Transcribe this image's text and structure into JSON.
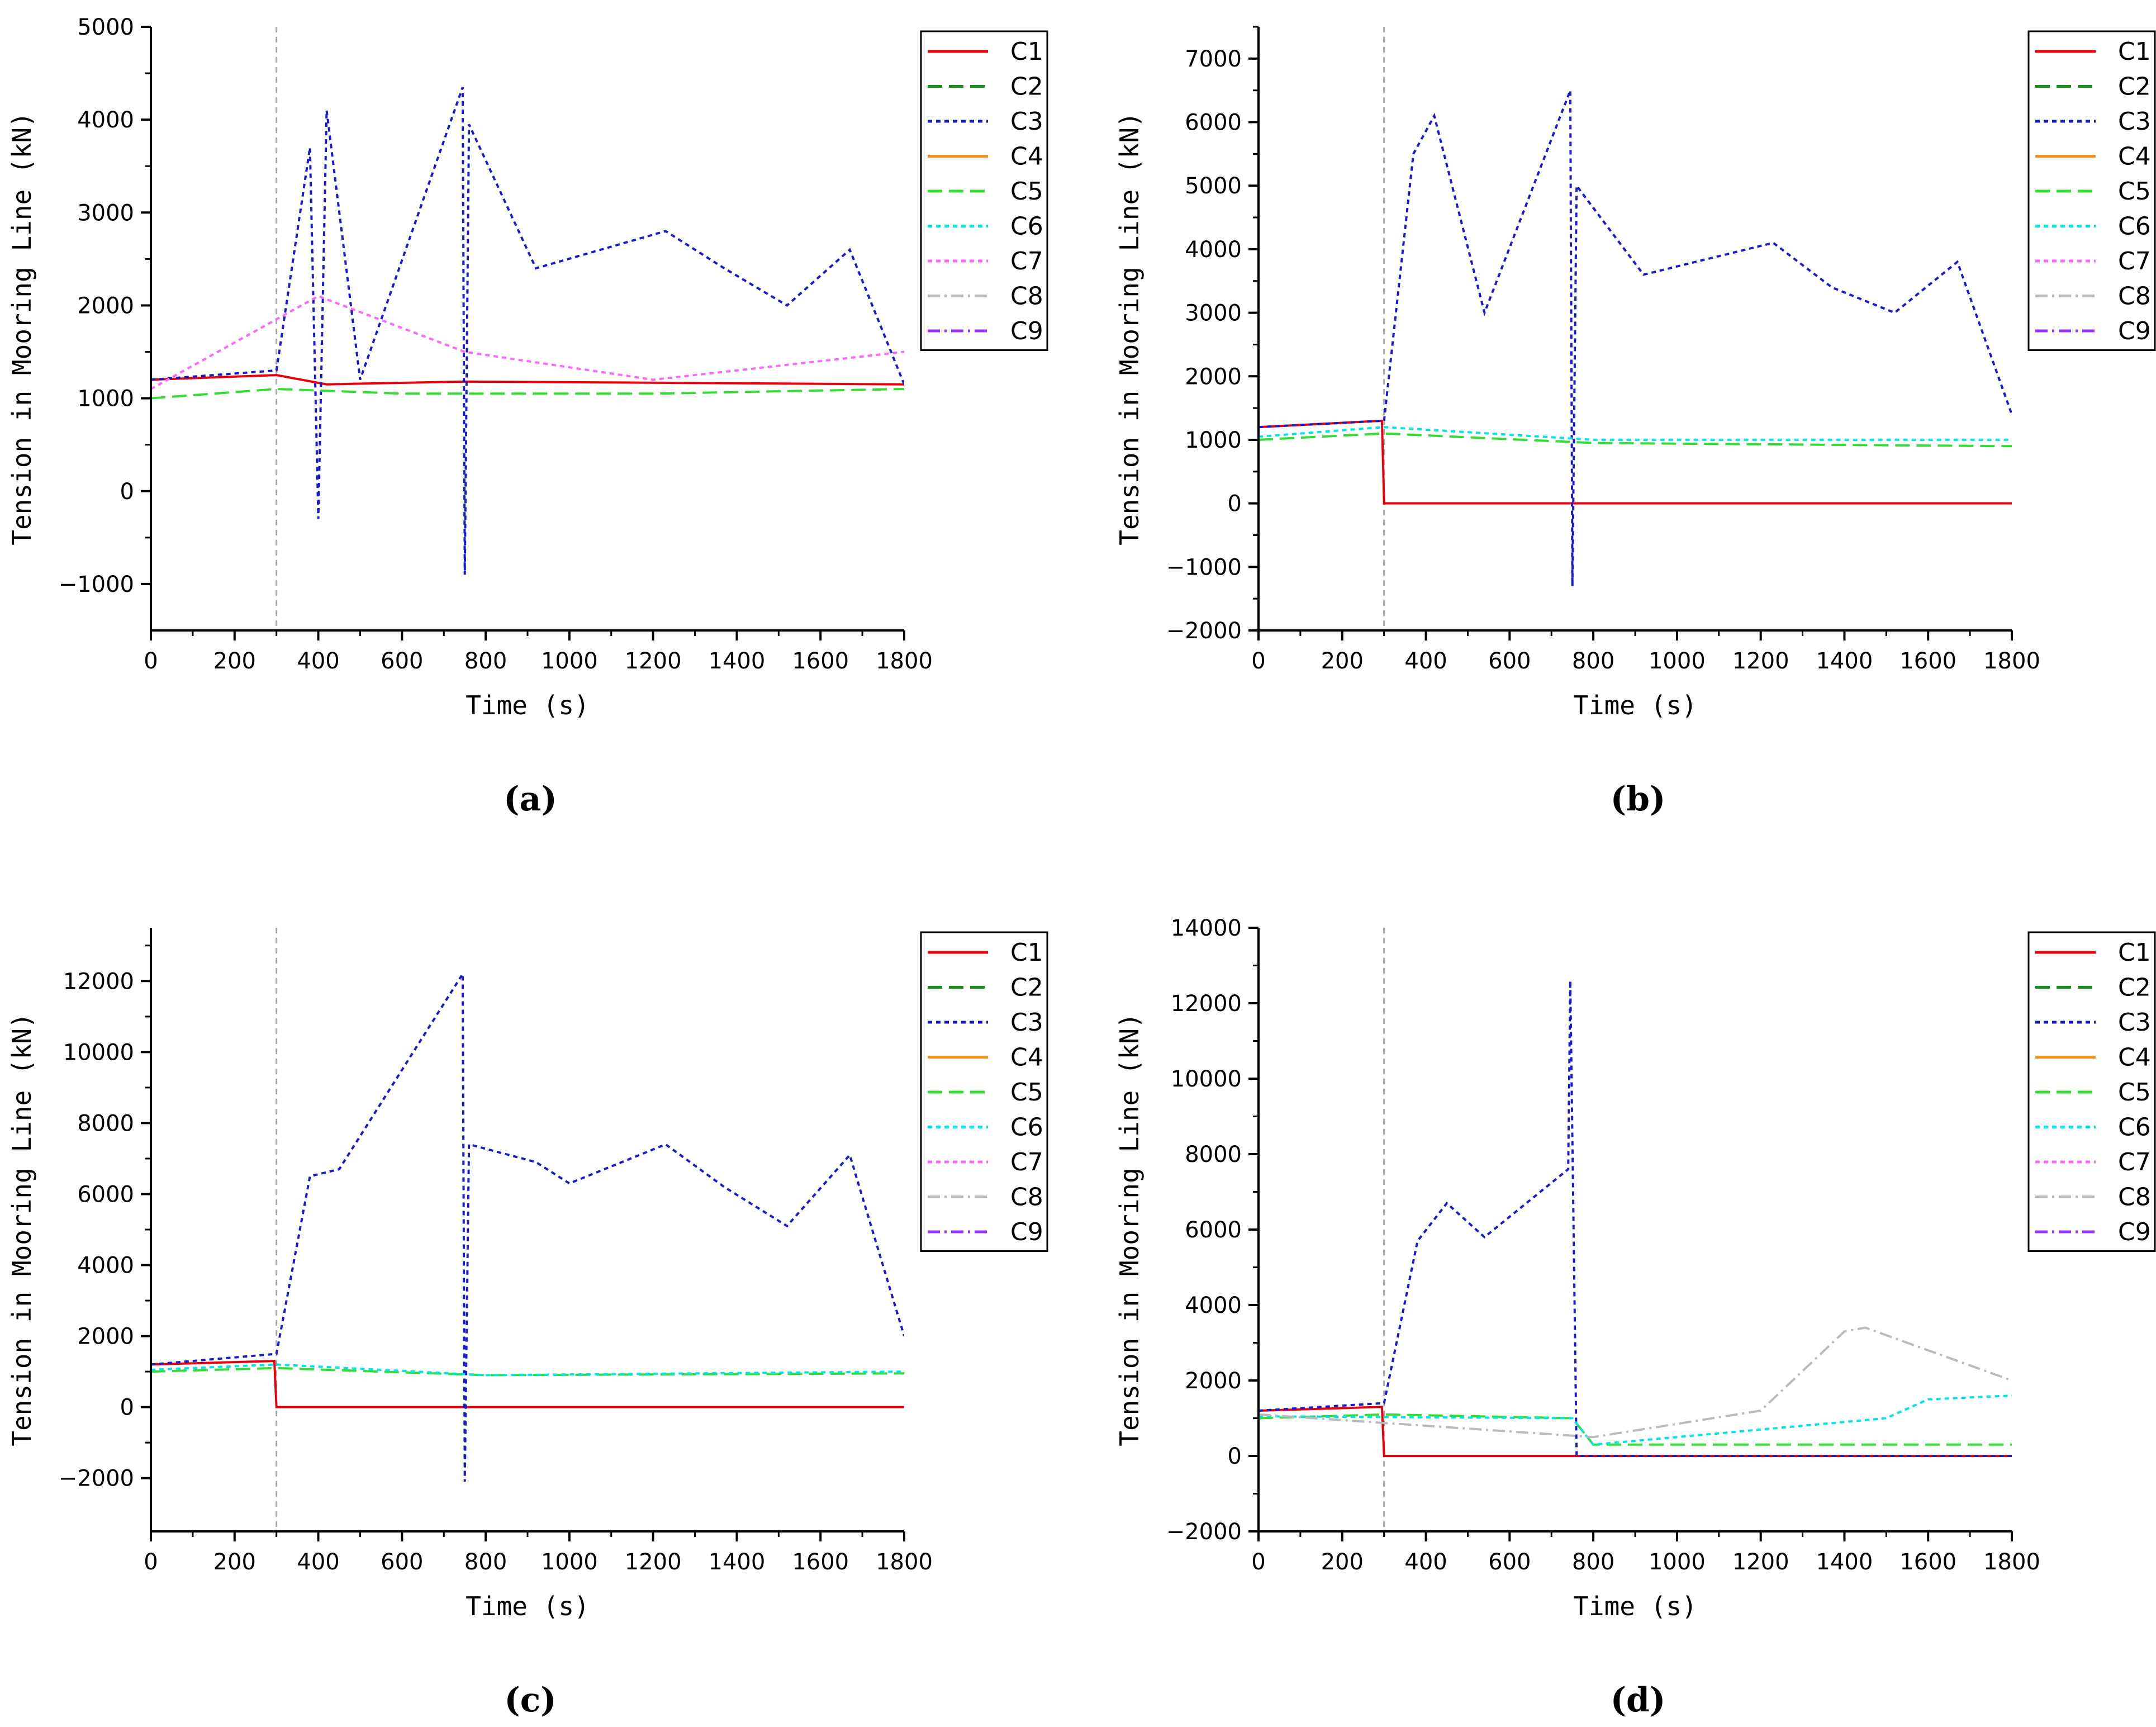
{
  "figure": {
    "legend_entries": [
      {
        "name": "C1",
        "color": "#e8000b",
        "dash": "solid"
      },
      {
        "name": "C2",
        "color": "#1a8c1a",
        "dash": "dash"
      },
      {
        "name": "C3",
        "color": "#1a1acd",
        "dash": "dot"
      },
      {
        "name": "C4",
        "color": "#ff8c1a",
        "dash": "solid"
      },
      {
        "name": "C5",
        "color": "#33dd33",
        "dash": "dash"
      },
      {
        "name": "C6",
        "color": "#00e5e5",
        "dash": "dot"
      },
      {
        "name": "C7",
        "color": "#ff66ff",
        "dash": "dot"
      },
      {
        "name": "C8",
        "color": "#bbbbbb",
        "dash": "dashdot"
      },
      {
        "name": "C9",
        "color": "#9933ff",
        "dash": "dashdot"
      }
    ]
  },
  "chart_data": [
    {
      "type": "line",
      "panel_label": "(a)",
      "xlabel": "Time (s)",
      "ylabel": "Tension in Mooring Line (kN)",
      "xlim": [
        0,
        1800
      ],
      "ylim": [
        -1500,
        5000
      ],
      "xticks": [
        0,
        200,
        400,
        600,
        800,
        1000,
        1200,
        1400,
        1600,
        1800
      ],
      "yticks": [
        -1000,
        0,
        1000,
        2000,
        3000,
        4000,
        5000
      ],
      "ytick_labels": [
        "−1000",
        "0",
        "1000",
        "2000",
        "3000",
        "4000",
        "5000"
      ],
      "reference_line_x": 300,
      "legend": "top-right",
      "series": [
        {
          "name": "C1",
          "x": [
            0,
            300,
            420,
            750,
            1800
          ],
          "values": [
            1200,
            1250,
            1150,
            1180,
            1150
          ]
        },
        {
          "name": "C3",
          "x": [
            0,
            300,
            380,
            400,
            420,
            500,
            745,
            750,
            760,
            920,
            1230,
            1370,
            1520,
            1670,
            1800
          ],
          "values": [
            1200,
            1300,
            3700,
            -300,
            4100,
            1200,
            4350,
            -900,
            3950,
            2400,
            2800,
            2400,
            2000,
            2600,
            1150
          ]
        },
        {
          "name": "C5",
          "x": [
            0,
            300,
            600,
            1200,
            1800
          ],
          "values": [
            1000,
            1100,
            1050,
            1050,
            1100
          ]
        },
        {
          "name": "C7",
          "x": [
            0,
            400,
            750,
            1200,
            1800
          ],
          "values": [
            1100,
            2100,
            1500,
            1200,
            1500
          ]
        }
      ]
    },
    {
      "type": "line",
      "panel_label": "(b)",
      "xlabel": "Time (s)",
      "ylabel": "Tension in Mooring Line (kN)",
      "xlim": [
        0,
        1800
      ],
      "ylim": [
        -2000,
        7500
      ],
      "xticks": [
        0,
        200,
        400,
        600,
        800,
        1000,
        1200,
        1400,
        1600,
        1800
      ],
      "yticks": [
        -2000,
        -1000,
        0,
        1000,
        2000,
        3000,
        4000,
        5000,
        6000,
        7000
      ],
      "ytick_labels": [
        "−2000",
        "−1000",
        "0",
        "1000",
        "2000",
        "3000",
        "4000",
        "5000",
        "6000",
        "7000"
      ],
      "reference_line_x": 300,
      "legend": "top-right",
      "series": [
        {
          "name": "C1",
          "x": [
            0,
            295,
            300,
            1800
          ],
          "values": [
            1200,
            1300,
            0,
            0
          ]
        },
        {
          "name": "C3",
          "x": [
            0,
            300,
            370,
            420,
            540,
            745,
            750,
            760,
            920,
            1230,
            1370,
            1520,
            1670,
            1800
          ],
          "values": [
            1200,
            1300,
            5500,
            6100,
            3000,
            6500,
            -1300,
            5000,
            3600,
            4100,
            3400,
            3000,
            3800,
            1400
          ]
        },
        {
          "name": "C5",
          "x": [
            0,
            300,
            800,
            1800
          ],
          "values": [
            1000,
            1100,
            950,
            900
          ]
        },
        {
          "name": "C6",
          "x": [
            0,
            300,
            800,
            1800
          ],
          "values": [
            1050,
            1200,
            1000,
            1000
          ]
        }
      ]
    },
    {
      "type": "line",
      "panel_label": "(c)",
      "xlabel": "Time (s)",
      "ylabel": "Tension in Mooring Line (kN)",
      "xlim": [
        0,
        1800
      ],
      "ylim": [
        -3500,
        13500
      ],
      "xticks": [
        0,
        200,
        400,
        600,
        800,
        1000,
        1200,
        1400,
        1600,
        1800
      ],
      "yticks": [
        -2000,
        0,
        2000,
        4000,
        6000,
        8000,
        10000,
        12000
      ],
      "ytick_labels": [
        "−2000",
        "0",
        "2000",
        "4000",
        "6000",
        "8000",
        "10000",
        "12000"
      ],
      "reference_line_x": 300,
      "legend": "top-right",
      "series": [
        {
          "name": "C1",
          "x": [
            0,
            295,
            300,
            1800
          ],
          "values": [
            1200,
            1300,
            0,
            0
          ]
        },
        {
          "name": "C3",
          "x": [
            0,
            300,
            380,
            450,
            745,
            750,
            760,
            920,
            1000,
            1230,
            1370,
            1520,
            1670,
            1800
          ],
          "values": [
            1200,
            1500,
            6500,
            6700,
            12200,
            -2100,
            7400,
            6900,
            6300,
            7400,
            6200,
            5100,
            7100,
            2000
          ]
        },
        {
          "name": "C5",
          "x": [
            0,
            300,
            800,
            1800
          ],
          "values": [
            1000,
            1100,
            900,
            950
          ]
        },
        {
          "name": "C6",
          "x": [
            0,
            300,
            800,
            1800
          ],
          "values": [
            1050,
            1200,
            900,
            1000
          ]
        }
      ]
    },
    {
      "type": "line",
      "panel_label": "(d)",
      "xlabel": "Time (s)",
      "ylabel": "Tension in Mooring Line (kN)",
      "xlim": [
        0,
        1800
      ],
      "ylim": [
        -2000,
        14000
      ],
      "xticks": [
        0,
        200,
        400,
        600,
        800,
        1000,
        1200,
        1400,
        1600,
        1800
      ],
      "yticks": [
        -2000,
        0,
        2000,
        4000,
        6000,
        8000,
        10000,
        12000,
        14000
      ],
      "ytick_labels": [
        "−2000",
        "0",
        "2000",
        "4000",
        "6000",
        "8000",
        "10000",
        "12000",
        "14000"
      ],
      "reference_line_x": 300,
      "legend": "top-right",
      "series": [
        {
          "name": "C1",
          "x": [
            0,
            295,
            300,
            1800
          ],
          "values": [
            1200,
            1300,
            0,
            0
          ]
        },
        {
          "name": "C3",
          "x": [
            0,
            300,
            380,
            450,
            540,
            740,
            745,
            760,
            1800
          ],
          "values": [
            1200,
            1400,
            5700,
            6700,
            5800,
            7600,
            12600,
            0,
            0
          ]
        },
        {
          "name": "C5",
          "x": [
            0,
            300,
            750,
            800,
            1800
          ],
          "values": [
            1000,
            1100,
            1000,
            300,
            300
          ]
        },
        {
          "name": "C6",
          "x": [
            0,
            750,
            800,
            1500,
            1600,
            1800
          ],
          "values": [
            1050,
            1000,
            300,
            1000,
            1500,
            1600
          ]
        },
        {
          "name": "C8",
          "x": [
            0,
            800,
            1200,
            1400,
            1450,
            1800
          ],
          "values": [
            1100,
            500,
            1200,
            3300,
            3400,
            2000
          ]
        }
      ]
    }
  ]
}
